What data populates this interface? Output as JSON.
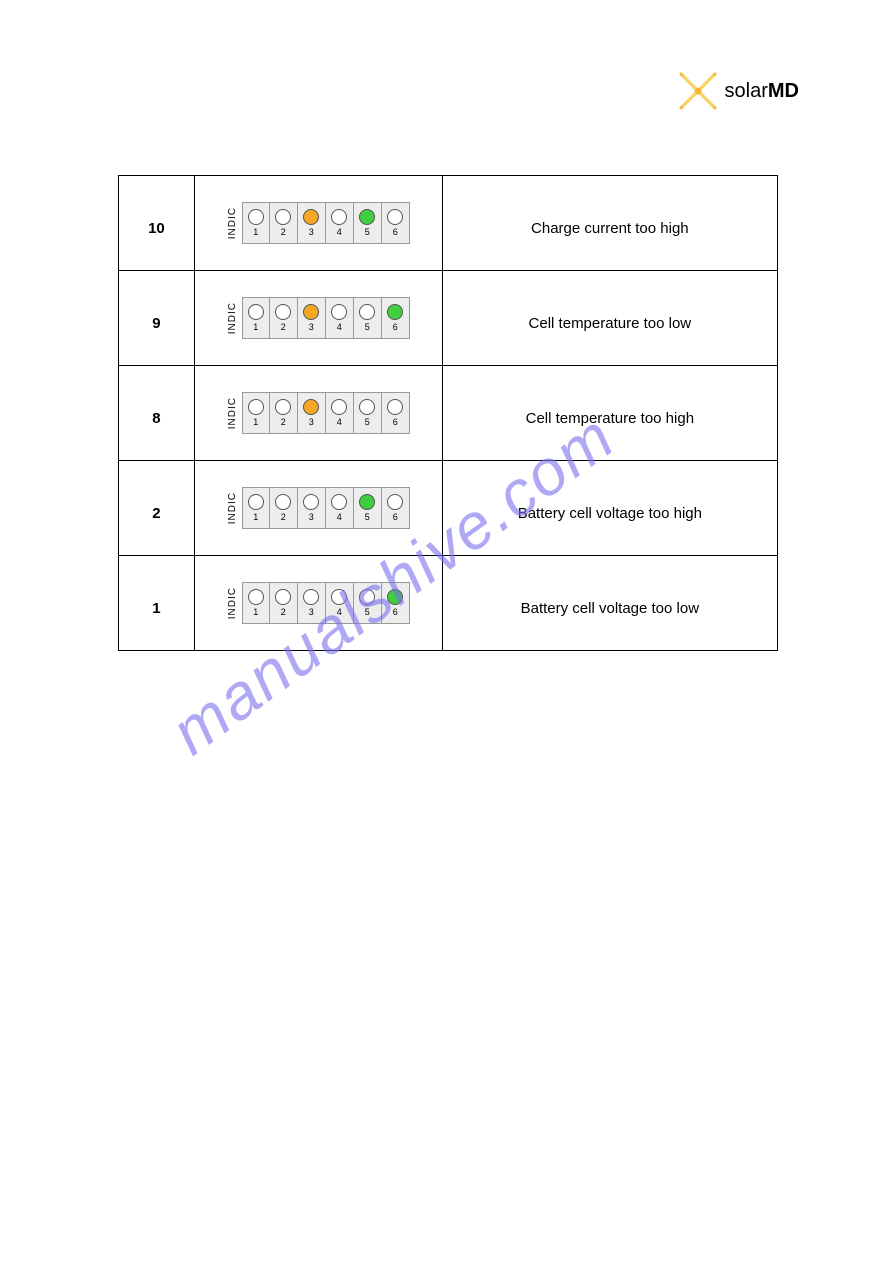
{
  "logo": {
    "brand_regular": "solar",
    "brand_bold": "MD",
    "star_color": "#f5b82e",
    "star_highlight": "#ffe07a"
  },
  "watermark": {
    "text": "manualshive.com",
    "color": "#7a6ff0"
  },
  "led_colors": {
    "off": "#ffffff",
    "orange": "#f5a623",
    "green": "#3fce3f",
    "border": "#555555",
    "cell_bg": "#ededed",
    "cell_border": "#999999"
  },
  "indic_label": "INDIC",
  "led_numbers": [
    "1",
    "2",
    "3",
    "4",
    "5",
    "6"
  ],
  "rows": [
    {
      "id": "10",
      "leds": [
        "off",
        "off",
        "orange",
        "off",
        "green",
        "off"
      ],
      "desc": "Charge current too high"
    },
    {
      "id": "9",
      "leds": [
        "off",
        "off",
        "orange",
        "off",
        "off",
        "green"
      ],
      "desc": "Cell temperature too low"
    },
    {
      "id": "8",
      "leds": [
        "off",
        "off",
        "orange",
        "off",
        "off",
        "off"
      ],
      "desc": "Cell temperature too high"
    },
    {
      "id": "2",
      "leds": [
        "off",
        "off",
        "off",
        "off",
        "green",
        "off"
      ],
      "desc": "Battery cell voltage too high"
    },
    {
      "id": "1",
      "leds": [
        "off",
        "off",
        "off",
        "off",
        "off",
        "green"
      ],
      "desc": "Battery cell voltage too low"
    }
  ]
}
